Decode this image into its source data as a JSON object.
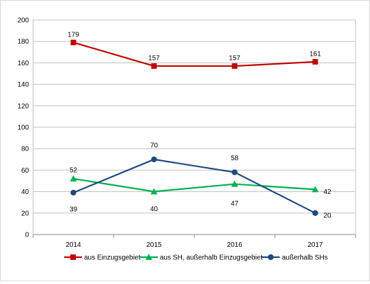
{
  "chart_data": {
    "type": "line",
    "categories": [
      "2014",
      "2015",
      "2016",
      "2017"
    ],
    "y_ticks": [
      "0",
      "20",
      "40",
      "60",
      "80",
      "100",
      "120",
      "140",
      "160",
      "180",
      "200"
    ],
    "ylim": [
      0,
      200
    ],
    "grid": true,
    "legend_position": "bottom",
    "series": [
      {
        "name": "aus Einzugsgebiet",
        "values": [
          179,
          157,
          157,
          161
        ],
        "labels": [
          "179",
          "157",
          "157",
          "161"
        ],
        "color": "#c00000",
        "marker": "square"
      },
      {
        "name": "aus SH, außerhalb Einzugsgebiet",
        "values": [
          52,
          40,
          47,
          42
        ],
        "labels": [
          "52",
          "40",
          "47",
          "42"
        ],
        "color": "#00b050",
        "marker": "triangle"
      },
      {
        "name": "außerhalb SHs",
        "values": [
          39,
          70,
          58,
          20
        ],
        "labels": [
          "39",
          "70",
          "58",
          "20"
        ],
        "color": "#1f497d",
        "marker": "circle"
      }
    ]
  }
}
